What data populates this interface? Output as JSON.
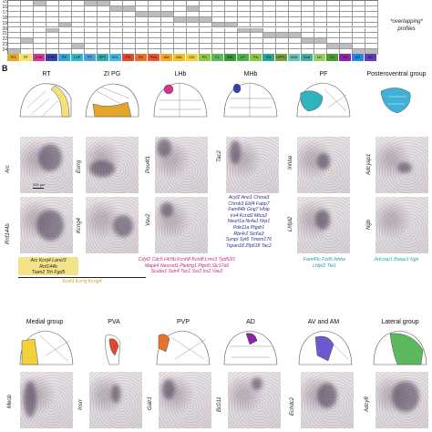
{
  "panelA": {
    "row_labels": [
      "15",
      "16",
      "17",
      "18",
      "19",
      "20",
      "21",
      "22",
      "23",
      "24"
    ],
    "columns": [
      "PG",
      "RT",
      "LHb",
      "MHb",
      "RE",
      "LHP",
      "PF",
      "SPF",
      "SGL",
      "PV",
      "Rh",
      "ReA",
      "AM",
      "IAD",
      "CM",
      "PC",
      "CL",
      "MD",
      "LP",
      "Po",
      "VM",
      "VPPC",
      "AVA",
      "Sub",
      "LD",
      "VL",
      "AV",
      "AD",
      "AD"
    ],
    "column_colors": [
      "#e9a820",
      "#f2e36a",
      "#d43b8c",
      "#3a3fb0",
      "#32a6d8",
      "#2fb9c4",
      "#4fa0d8",
      "#2fb0a8",
      "#47b7e1",
      "#e2462f",
      "#e5732c",
      "#e8562d",
      "#f5a623",
      "#f3c02b",
      "#f2d23a",
      "#8ec641",
      "#5cb85c",
      "#3a9a3a",
      "#4caf50",
      "#8bc34a",
      "#2aa39a",
      "#7aa23a",
      "#6dc2bf",
      "#45b0a0",
      "#9ccc65",
      "#4e9a2e",
      "#8e24aa",
      "#1e88e5",
      "#673ab7"
    ],
    "overlap_note": "*overlapping* profiles"
  },
  "panelB": {
    "letter": "B",
    "top_columns": [
      {
        "title": "RT",
        "genes": [
          "Arc",
          "Rnf144b"
        ],
        "list_lines": [
          "Arc Kcnj4 Lancl3",
          "Rnf144b",
          "Tiam2 Trh Fgd5"
        ],
        "list_color": "#222",
        "footer": "Ecel1 Esrrg Kcng4",
        "footer_color": "#c9a227",
        "scale": "200 µm"
      },
      {
        "title": "ZI PG",
        "genes": [
          "Esrrg",
          "Kcng4"
        ]
      },
      {
        "title": "LHb",
        "genes": [
          "Pou4f1",
          "Vav2"
        ],
        "list_lines": [
          "Cdyl2 Cdc5 Htr5b Kcnh8 Kctd8 Lmo3 Tpd52l1",
          "Mapk4 Neurod1 Plekhg1 Ptpn5 Slc17a6",
          "Scube1 Sstr4 Tac1 Ssr2 Irx2 Vav2"
        ],
        "list_color": "#c2277e"
      },
      {
        "title": "MHb",
        "genes": [
          "Tac2"
        ],
        "list_lines": [
          "Acyl2 Ano1 Chrna3",
          "Chrnb3 Ebf4 Fabp7",
          "Fam84b Gng7 Hhip",
          "Irx4 Kcnd2 Mtus2",
          "Neurl1a Nr4a1 Nrp1",
          "Pde11a Ptgdr1",
          "Rbr4r2 Slc6a3",
          "Synpr Syt6 Tmem176",
          "Tspan18 Zfp618 Tac2"
        ],
        "list_color": "#2a2f8a"
      },
      {
        "title": "PF",
        "genes": [
          "Inhba",
          "Lhfpl2"
        ],
        "list_lines": [
          "Fam49c Fzd5 Inhba",
          "Lhfpl2 Tle1"
        ],
        "list_color": "#2798a8"
      },
      {
        "title": "Posteroventral group",
        "genes": [
          "Adcyap1",
          "Ngb"
        ],
        "list_lines": [
          "Adcyap1 Baiap3 Ngb"
        ],
        "list_color": "#2aa7b3"
      }
    ],
    "bottom_columns": [
      {
        "title": "Medial group",
        "gene": "Meob"
      },
      {
        "title": "PVA",
        "gene": "Insrr"
      },
      {
        "title": "PVP",
        "gene": "Galr1"
      },
      {
        "title": "AD",
        "gene": "Bc011"
      },
      {
        "title": "AV and AM",
        "gene": "Echdc2"
      },
      {
        "title": "Lateral group",
        "gene": "Adcy8"
      }
    ]
  }
}
